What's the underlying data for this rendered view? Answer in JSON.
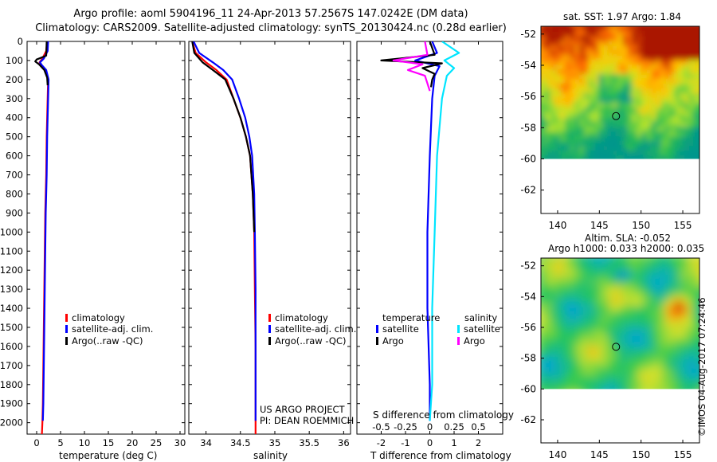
{
  "header": {
    "line1": "Argo profile: aoml 5904196_11 24-Apr-2013 57.2567S 147.0242E (DM data)",
    "line2": "Climatology: CARS2009. Satellite-adjusted climatology: synTS_20130424.nc (0.28d earlier)"
  },
  "colors": {
    "climatology": "#ff0000",
    "satellite": "#0000ff",
    "argo": "#000000",
    "sal_satellite": "#00e5ff",
    "sal_argo": "#ff00ff"
  },
  "chart_data": [
    {
      "type": "line",
      "id": "temperature",
      "xlabel": "temperature (deg C)",
      "xlim": [
        -2,
        31
      ],
      "xticks": [
        0,
        5,
        10,
        15,
        20,
        25,
        30
      ],
      "ylim": [
        2060,
        0
      ],
      "yticks": [
        0,
        100,
        200,
        300,
        400,
        500,
        600,
        700,
        800,
        900,
        1000,
        1100,
        1200,
        1300,
        1400,
        1500,
        1600,
        1700,
        1800,
        1900,
        2000
      ],
      "legend": [
        "climatology",
        "satellite-adj. clim.",
        "Argo(..raw -QC)"
      ],
      "series": [
        {
          "name": "climatology",
          "color": "#ff0000",
          "x": [
            2.2,
            2.0,
            1.2,
            0.6,
            1.0,
            1.9,
            2.4,
            2.3,
            2.2,
            2.1,
            2.0,
            1.8,
            1.7,
            1.6,
            1.5,
            1.4,
            1.3,
            1.2,
            1.1
          ],
          "y": [
            0,
            50,
            90,
            110,
            125,
            150,
            200,
            300,
            400,
            500,
            700,
            900,
            1100,
            1300,
            1500,
            1700,
            1900,
            2000,
            2060
          ]
        },
        {
          "name": "satellite-adj. clim.",
          "color": "#0000ff",
          "x": [
            2.4,
            2.3,
            1.5,
            0.7,
            1.1,
            2.0,
            2.5,
            2.4,
            2.3,
            2.2,
            2.1,
            1.9,
            1.8,
            1.7,
            1.6,
            1.5,
            1.4,
            1.3
          ],
          "y": [
            0,
            50,
            90,
            110,
            125,
            150,
            200,
            300,
            400,
            500,
            700,
            900,
            1100,
            1300,
            1500,
            1700,
            1900,
            1990
          ]
        },
        {
          "name": "Argo(..raw -QC)",
          "color": "#000000",
          "x": [
            2.1,
            2.0,
            0.0,
            -0.3,
            0.5,
            1.6,
            2.2,
            2.3
          ],
          "y": [
            0,
            75,
            95,
            105,
            120,
            150,
            190,
            230
          ]
        }
      ]
    },
    {
      "type": "line",
      "id": "salinity",
      "xlabel": "salinity",
      "xlim": [
        33.75,
        36.1
      ],
      "xticks": [
        34,
        34.5,
        35,
        35.5,
        36
      ],
      "xticklabels": [
        "34",
        "34.5",
        "35",
        "35.5",
        "36"
      ],
      "ylim": [
        2060,
        0
      ],
      "legend": [
        "climatology",
        "satellite-adj. clim.",
        "Argo(..raw -QC)"
      ],
      "annotation": [
        "US ARGO PROJECT",
        "PI: DEAN ROEMMICH"
      ],
      "series": [
        {
          "name": "climatology",
          "color": "#ff0000",
          "x": [
            33.8,
            33.85,
            34.0,
            34.15,
            34.3,
            34.4,
            34.5,
            34.58,
            34.64,
            34.68,
            34.7,
            34.71,
            34.72,
            34.72,
            34.72
          ],
          "y": [
            0,
            60,
            110,
            150,
            200,
            300,
            400,
            500,
            600,
            800,
            1000,
            1300,
            1600,
            1900,
            2060
          ]
        },
        {
          "name": "satellite-adj. clim.",
          "color": "#0000ff",
          "x": [
            33.82,
            33.9,
            34.1,
            34.25,
            34.38,
            34.48,
            34.57,
            34.63,
            34.67,
            34.7,
            34.71,
            34.72,
            34.72,
            34.72
          ],
          "y": [
            0,
            60,
            110,
            150,
            200,
            300,
            400,
            500,
            600,
            800,
            1000,
            1300,
            1600,
            1990
          ]
        },
        {
          "name": "Argo(..raw -QC)",
          "color": "#000000",
          "x": [
            33.8,
            33.83,
            33.95,
            34.1,
            34.28,
            34.4,
            34.5,
            34.58,
            34.64,
            34.68,
            34.7
          ],
          "y": [
            0,
            60,
            110,
            150,
            200,
            300,
            400,
            500,
            600,
            800,
            1000
          ]
        }
      ]
    },
    {
      "type": "line",
      "id": "differences",
      "xlabel": "T difference from climatology",
      "xlabel_top": "S difference from climatology",
      "xlim": [
        -3,
        3
      ],
      "xticks": [
        -2,
        -1,
        0,
        1,
        2
      ],
      "s_ticks": [
        "-0.5",
        "-0.25",
        "0",
        "0.25",
        "0.5"
      ],
      "ylim": [
        2060,
        0
      ],
      "legend_headers": [
        "temperature",
        "salinity"
      ],
      "legend": [
        "satellite",
        "Argo",
        "satellite",
        "Argo"
      ],
      "series": [
        {
          "name": "satellite",
          "group": "temperature",
          "color": "#0000ff",
          "x": [
            0.1,
            0.3,
            -0.6,
            0.4,
            0.2,
            0.1,
            0.0,
            -0.1,
            -0.1,
            0.0,
            0.0
          ],
          "y": [
            0,
            60,
            100,
            130,
            180,
            300,
            600,
            1000,
            1400,
            1800,
            1990
          ]
        },
        {
          "name": "Argo",
          "group": "temperature",
          "color": "#000000",
          "x": [
            0.0,
            0.2,
            -2.0,
            0.5,
            -0.3,
            0.2,
            0.1,
            0.05
          ],
          "y": [
            0,
            70,
            100,
            115,
            140,
            170,
            200,
            240
          ]
        },
        {
          "name": "satellite",
          "group": "salinity",
          "color": "#00e5ff",
          "x": [
            0.5,
            1.2,
            0.6,
            1.0,
            0.7,
            0.5,
            0.3,
            0.2,
            0.1,
            0.1,
            0.0
          ],
          "y": [
            0,
            60,
            100,
            140,
            180,
            300,
            600,
            1000,
            1400,
            1800,
            1990
          ]
        },
        {
          "name": "Argo",
          "group": "salinity",
          "color": "#ff00ff",
          "x": [
            -0.2,
            -0.1,
            -1.5,
            -0.3,
            -0.9,
            -0.2,
            -0.1,
            0.0
          ],
          "y": [
            0,
            70,
            100,
            120,
            150,
            180,
            220,
            260
          ]
        }
      ]
    },
    {
      "type": "heatmap",
      "id": "sst_map",
      "title": "sat. SST: 1.97  Argo: 1.84",
      "xlim": [
        138,
        157
      ],
      "ylim": [
        -63.5,
        -51.5
      ],
      "xticks": [
        140,
        145,
        150,
        155
      ],
      "yticks": [
        -52,
        -54,
        -56,
        -58,
        -60,
        -62
      ],
      "data_extent_lat": [
        -60,
        -51.5
      ],
      "marker": {
        "lon": 147.0,
        "lat": -57.26
      }
    },
    {
      "type": "heatmap",
      "id": "sla_map",
      "title": [
        "Altim. SLA: -0.052",
        "Argo h1000: 0.033 h2000: 0.035"
      ],
      "xlim": [
        138,
        157
      ],
      "ylim": [
        -63.5,
        -51.5
      ],
      "xticks": [
        140,
        145,
        150,
        155
      ],
      "yticks": [
        -52,
        -54,
        -56,
        -58,
        -60,
        -62
      ],
      "data_extent_lat": [
        -60,
        -51.5
      ],
      "marker": {
        "lon": 147.0,
        "lat": -57.26
      }
    }
  ],
  "credit": "©IMOS 04-Aug-2017 07:24:46"
}
